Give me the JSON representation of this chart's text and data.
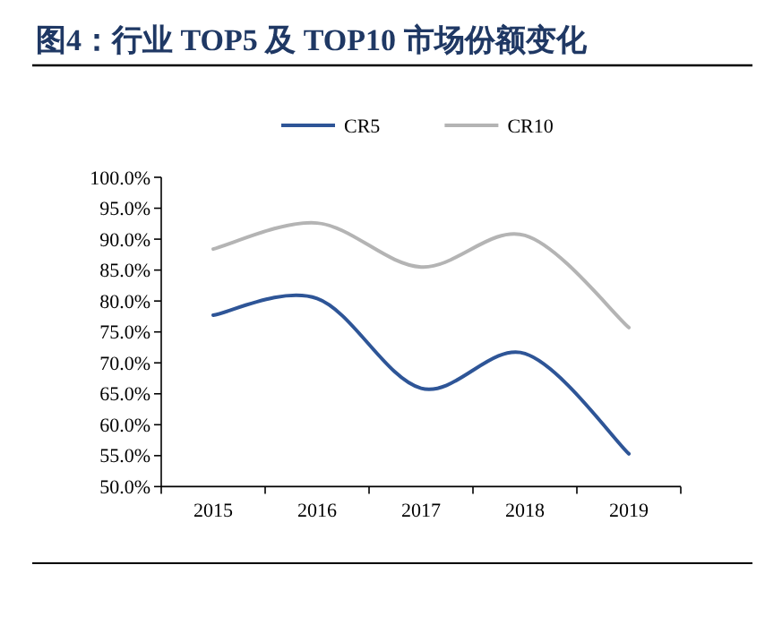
{
  "chart_data": {
    "type": "line",
    "title": "图4：行业 TOP5 及 TOP10 市场份额变化",
    "categories": [
      "2015",
      "2016",
      "2017",
      "2018",
      "2019"
    ],
    "series": [
      {
        "name": "CR5",
        "color": "#2e5597",
        "values": [
          77.7,
          80.4,
          65.9,
          71.5,
          55.3
        ]
      },
      {
        "name": "CR10",
        "color": "#b4b4b4",
        "values": [
          88.4,
          92.6,
          85.5,
          90.6,
          75.7
        ]
      }
    ],
    "ylim": [
      50,
      100
    ],
    "yticks": [
      {
        "value": 50,
        "label": "50.0%"
      },
      {
        "value": 55,
        "label": "55.0%"
      },
      {
        "value": 60,
        "label": "60.0%"
      },
      {
        "value": 65,
        "label": "65.0%"
      },
      {
        "value": 70,
        "label": "70.0%"
      },
      {
        "value": 75,
        "label": "75.0%"
      },
      {
        "value": 80,
        "label": "80.0%"
      },
      {
        "value": 85,
        "label": "85.0%"
      },
      {
        "value": 90,
        "label": "90.0%"
      },
      {
        "value": 95,
        "label": "95.0%"
      },
      {
        "value": 100,
        "label": "100.0%"
      }
    ],
    "legend": "top",
    "grid": false,
    "marker": "none",
    "line_style": "solid"
  }
}
